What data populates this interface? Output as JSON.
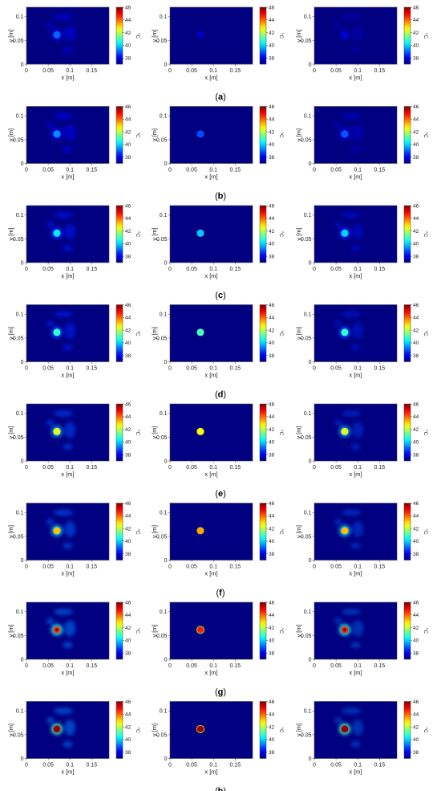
{
  "figure": {
    "rows": [
      {
        "caption": "(a)",
        "hotspot": [
          39.0,
          37.6,
          37.7
        ]
      },
      {
        "caption": "(b)",
        "hotspot": [
          39.4,
          38.8,
          38.9
        ]
      },
      {
        "caption": "(c)",
        "hotspot": [
          40.2,
          39.9,
          40.0
        ]
      },
      {
        "caption": "(d)",
        "hotspot": [
          40.8,
          41.0,
          40.8
        ]
      },
      {
        "caption": "(e)",
        "hotspot": [
          42.4,
          42.6,
          42.4
        ]
      },
      {
        "caption": "(f)",
        "hotspot": [
          43.2,
          43.4,
          43.2
        ]
      },
      {
        "caption": "(g)",
        "hotspot": [
          44.4,
          44.6,
          44.5
        ]
      },
      {
        "caption": "(h)",
        "hotspot": [
          45.6,
          45.8,
          45.7
        ]
      }
    ],
    "caption_order": [
      "a",
      "b",
      "c",
      "d",
      "e",
      "f",
      "g",
      "h"
    ]
  },
  "chart_data": {
    "type": "heatmap",
    "layout": "8 rows x 3 columns of heatmaps",
    "xlabel": "x [m]",
    "ylabel": "y [m]",
    "xlim": [
      0,
      0.19
    ],
    "ylim": [
      0,
      0.12
    ],
    "xticks": [
      "0",
      "0.05",
      "0.1",
      "0.15"
    ],
    "yticks": [
      "0",
      "0.05",
      "0.1"
    ],
    "colorbar": {
      "label": "°C",
      "range": [
        37,
        46
      ],
      "ticks": [
        "38",
        "40",
        "42",
        "44",
        "46"
      ],
      "colormap": "jet"
    },
    "hotspot_center": {
      "x": 0.07,
      "y": 0.062
    },
    "background_temperature": 37.0
  },
  "colors": {
    "background_field": "#00008f",
    "jet_stops": [
      "#00008f",
      "#0000ff",
      "#00ffff",
      "#ffff00",
      "#ff0000",
      "#800000"
    ]
  }
}
